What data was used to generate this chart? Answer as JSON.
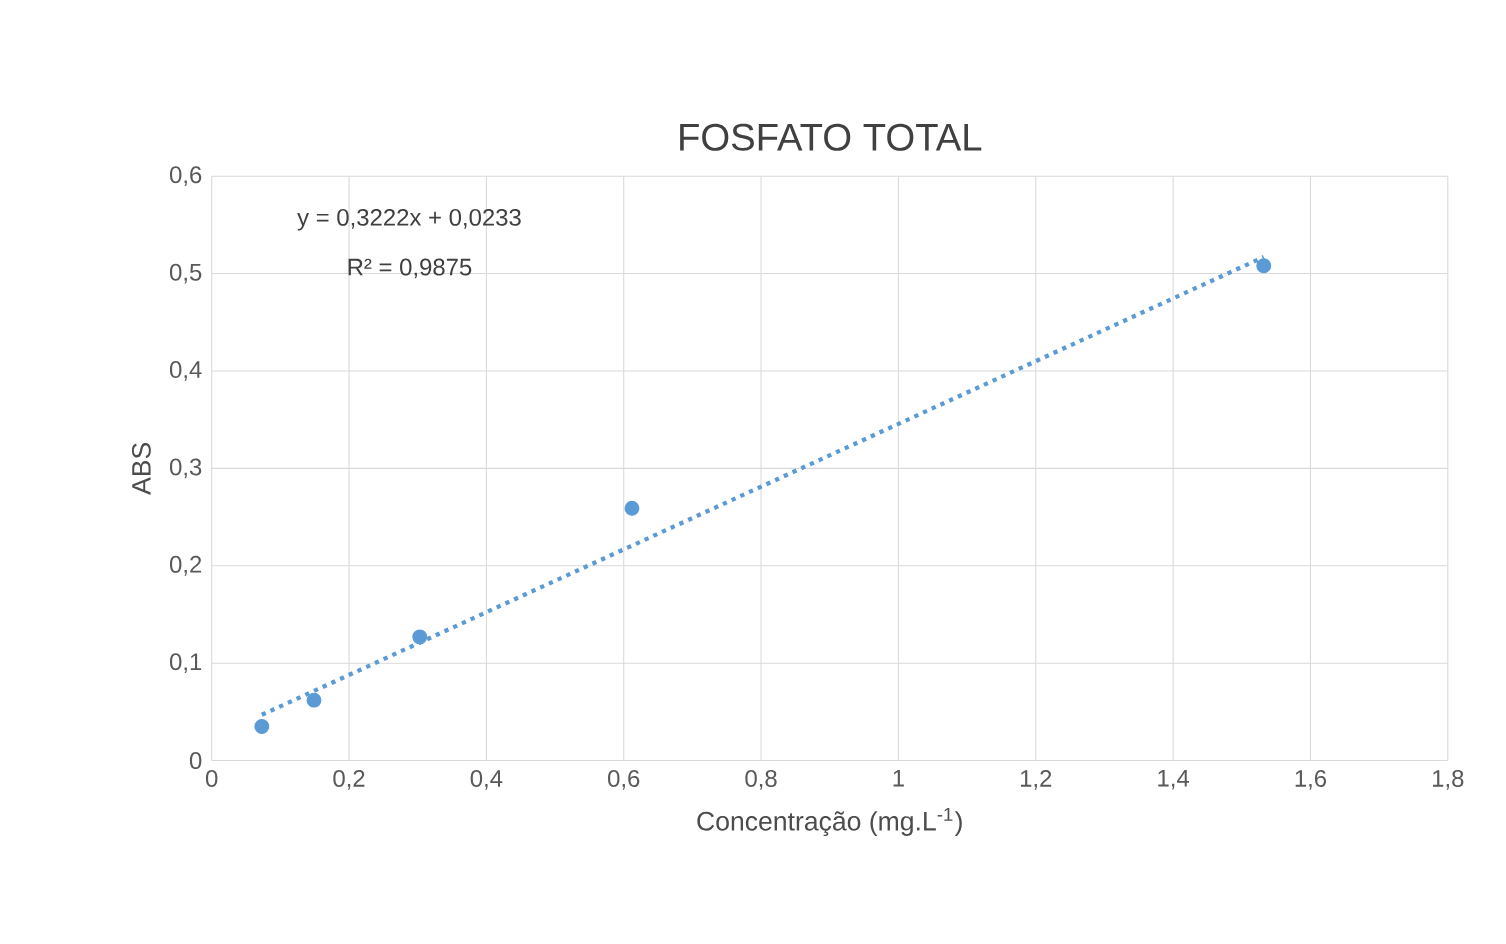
{
  "chart_data": {
    "type": "scatter",
    "title": "FOSFATO TOTAL",
    "xlabel": "Concentração (mg.L$^{-1}$)",
    "ylabel": "ABS",
    "annotations": [
      "y = 0,3222x + 0,0233",
      "R² = 0,9875"
    ],
    "series": [
      {
        "color": "#5b9bd5",
        "marker": "circle",
        "x": [
          0.073,
          0.149,
          0.303,
          0.612,
          1.532
        ],
        "values": [
          0.035,
          0.062,
          0.127,
          0.259,
          0.508
        ]
      },
      {
        "type": "line",
        "color": "#5b9bd5",
        "line_style": "dotted",
        "marker": "none",
        "x": [
          0.073,
          1.532
        ],
        "values": [
          0.047,
          0.517
        ]
      }
    ],
    "xlim": [
      0,
      1.8
    ],
    "ylim": [
      0,
      0.6
    ],
    "xticks": [
      0,
      {
        "value": 0.2,
        "label": "0,2"
      },
      {
        "value": 0.4,
        "label": "0,4"
      },
      {
        "value": 0.6,
        "label": "0,6"
      },
      {
        "value": 0.8,
        "label": "0,8"
      },
      1,
      {
        "value": 1.2,
        "label": "1,2"
      },
      {
        "value": 1.4,
        "label": "1,4"
      },
      {
        "value": 1.6,
        "label": "1,6"
      },
      {
        "value": 1.8,
        "label": "1,8"
      }
    ],
    "yticks": [
      0,
      {
        "value": 0.1,
        "label": "0,1"
      },
      {
        "value": 0.2,
        "label": "0,2"
      },
      {
        "value": 0.3,
        "label": "0,3"
      },
      {
        "value": 0.4,
        "label": "0,4"
      },
      {
        "value": 0.5,
        "label": "0,5"
      },
      {
        "value": 0.6,
        "label": "0,6"
      }
    ],
    "grid": true
  }
}
